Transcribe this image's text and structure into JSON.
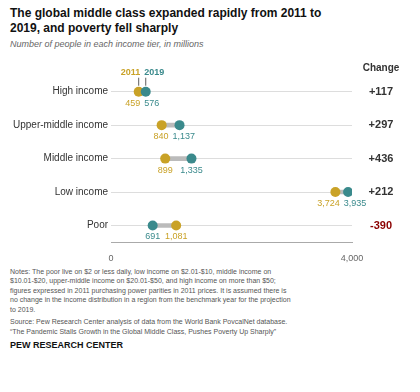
{
  "chart_data": {
    "type": "dumbbell",
    "orientation": "horizontal",
    "title": "The global middle class expanded rapidly from 2011 to\n2019, and poverty fell sharply",
    "subtitle": "Number of people in each income tier, in millions",
    "categories": [
      "High income",
      "Upper-middle income",
      "Middle income",
      "Low income",
      "Poor"
    ],
    "series": [
      {
        "name": "2011",
        "color": "#C9A227",
        "values": [
          459,
          840,
          899,
          3724,
          1081
        ],
        "value_labels": [
          "459",
          "840",
          "899",
          "3,724",
          "1,081"
        ]
      },
      {
        "name": "2019",
        "color": "#3A8A8C",
        "values": [
          576,
          1137,
          1335,
          3935,
          691
        ],
        "value_labels": [
          "576",
          "1,137",
          "1,335",
          "3,935",
          "691"
        ]
      }
    ],
    "connector_color": "#BBBBBB",
    "change": {
      "title": "Change",
      "values": [
        117,
        297,
        436,
        212,
        -390
      ],
      "value_labels": [
        "+117",
        "+297",
        "+436",
        "+212",
        "-390"
      ],
      "negative_color": "#8B0000"
    },
    "xlim": [
      0,
      4000
    ],
    "xticks": [
      0,
      {
        "value": 1000,
        "label": null
      },
      {
        "value": 2000,
        "label": null
      },
      {
        "value": 3000,
        "label": null
      },
      {
        "value": 4000,
        "label": "4,000"
      }
    ],
    "grid": "y",
    "data_labels": true,
    "notes": [
      "Notes: The poor live on $2 or less daily, low income on $2.01-$10, middle income on",
      "$10.01-$20, upper-middle income on $20.01-$50, and high income on more than $50;",
      "figures expressed in 2011 purchasing power parities in 2011 prices. It is assumed there is",
      "no change in the income distribution in a region from the benchmark year for the projection",
      "to 2019."
    ],
    "source": [
      "Source: Pew Research Center analysis of data from the World Bank PovcalNet database.",
      "“The Pandemic Stalls Growth in the Global Middle Class, Pushes Poverty Up Sharply”"
    ],
    "footer": "PEW RESEARCH CENTER"
  }
}
